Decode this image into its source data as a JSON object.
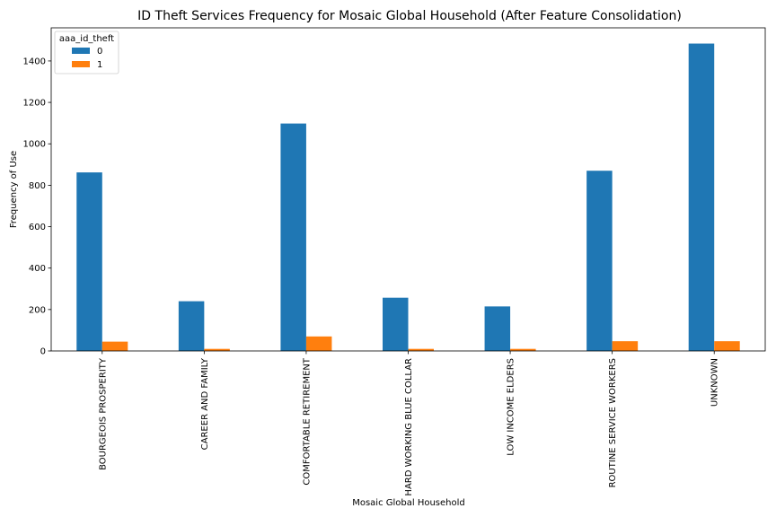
{
  "chart_data": {
    "type": "bar",
    "title": "ID Theft Services Frequency for Mosaic Global Household (After Feature Consolidation)",
    "xlabel": "Mosaic Global Household",
    "ylabel": "Frequency of Use",
    "categories": [
      "BOURGEOIS PROSPERITY",
      "CAREER AND FAMILY",
      "COMFORTABLE RETIREMENT",
      "HARD WORKING BLUE COLLAR",
      "LOW INCOME ELDERS",
      "ROUTINE SERVICE WORKERS",
      "UNKNOWN"
    ],
    "series": [
      {
        "name": "0",
        "color": "#1f77b4",
        "values": [
          862,
          240,
          1098,
          257,
          215,
          870,
          1484
        ]
      },
      {
        "name": "1",
        "color": "#ff7f0e",
        "values": [
          45,
          10,
          70,
          10,
          10,
          47,
          47
        ]
      }
    ],
    "ylim": [
      0,
      1560
    ],
    "yticks": [
      0,
      200,
      400,
      600,
      800,
      1000,
      1200,
      1400
    ],
    "grid": false,
    "legend": {
      "title": "aaa_id_theft",
      "placement": "top-left"
    }
  }
}
